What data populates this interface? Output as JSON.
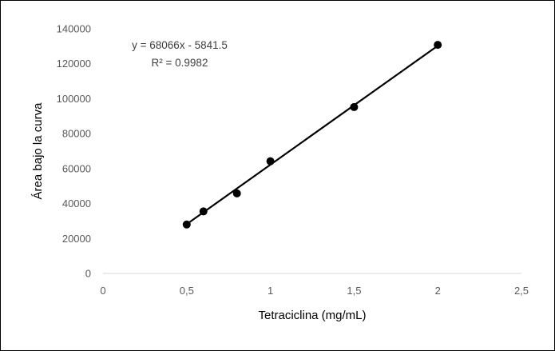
{
  "chart_data": {
    "type": "scatter",
    "title": "",
    "xlabel": "Tetraciclina (mg/mL)",
    "ylabel": "Área bajo la curva",
    "xlim": [
      0,
      2.5
    ],
    "ylim": [
      0,
      140000
    ],
    "x_ticks": [
      0,
      0.5,
      1,
      1.5,
      2,
      2.5
    ],
    "x_tick_labels": [
      "0",
      "0,5",
      "1",
      "1,5",
      "2",
      "2,5"
    ],
    "y_ticks": [
      0,
      20000,
      40000,
      60000,
      80000,
      100000,
      120000,
      140000
    ],
    "y_tick_labels": [
      "0",
      "20000",
      "40000",
      "60000",
      "80000",
      "100000",
      "120000",
      "140000"
    ],
    "grid": false,
    "legend": "none",
    "series": [
      {
        "x": [
          0.5,
          0.6,
          0.8,
          1.0,
          1.5,
          2.0
        ],
        "y": [
          28000,
          35500,
          45800,
          64200,
          95200,
          130800
        ],
        "marker_color": "#000000"
      }
    ],
    "trendline": {
      "slope": 68066,
      "intercept": -5841.5,
      "x_range": [
        0.5,
        2.0
      ],
      "equation": "y = 68066x - 5841.5",
      "r_squared": "R² = 0.9982",
      "color": "#000000"
    }
  }
}
